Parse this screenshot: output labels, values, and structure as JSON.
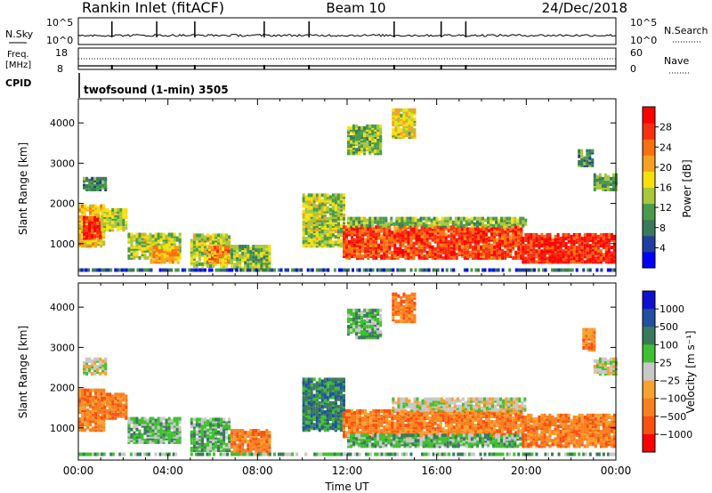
{
  "header": {
    "station": "Rankin Inlet (fitACF)",
    "beam": "Beam 10",
    "date": "24/Dec/2018"
  },
  "noise_panel": {
    "left_label": "N.Sky",
    "right_label": "N.Search",
    "left_ticks": [
      "10^5",
      "10^0"
    ],
    "right_ticks": [
      "10^5",
      "10^0"
    ]
  },
  "freq_panel": {
    "left_label_line1": "Freq.",
    "left_label_line2": "[MHz]",
    "right_label": "Nave",
    "left_ticks": [
      "18",
      "8"
    ],
    "right_ticks": [
      "60",
      "0"
    ]
  },
  "cpid": {
    "label": "CPID",
    "text": "twofsound (1-min) 3505"
  },
  "colors": {
    "power_scale": [
      "#0000ff",
      "#1f3fa0",
      "#3a7a5a",
      "#4a9a4a",
      "#a8c83a",
      "#f8e010",
      "#f8a020",
      "#f87010",
      "#f83010",
      "#ff0000"
    ],
    "velocity_scale": [
      "#1010d0",
      "#2050a0",
      "#3a7a5a",
      "#40c030",
      "#c8c8c8",
      "#f8a030",
      "#f88020",
      "#f85010",
      "#ff0000"
    ]
  },
  "chart_data": [
    {
      "type": "heatmap",
      "title": "",
      "xlabel": "",
      "ylabel": "Slant Range [km]",
      "xlim": [
        0,
        24
      ],
      "ylim": [
        200,
        4600
      ],
      "x_ticks": [
        "00:00",
        "04:00",
        "08:00",
        "12:00",
        "16:00",
        "20:00",
        "00:00"
      ],
      "y_ticks": [
        1000,
        2000,
        3000,
        4000
      ],
      "colorbar_label": "Power [dB]",
      "colorbar_ticks": [
        "4",
        "8",
        "12",
        "16",
        "20",
        "24",
        "28"
      ],
      "colorbar_range": [
        0,
        30
      ],
      "regions": [
        {
          "t0": 0.0,
          "t1": 1.2,
          "r0": 900,
          "r1": 1900,
          "v": 18
        },
        {
          "t0": 0.2,
          "t1": 1.0,
          "r0": 1100,
          "r1": 1600,
          "v": 28
        },
        {
          "t0": 1.0,
          "t1": 2.2,
          "r0": 1300,
          "r1": 1800,
          "v": 14
        },
        {
          "t0": 2.2,
          "t1": 4.5,
          "r0": 600,
          "r1": 1200,
          "v": 14
        },
        {
          "t0": 3.2,
          "t1": 4.5,
          "r0": 500,
          "r1": 900,
          "v": 20
        },
        {
          "t0": 5.0,
          "t1": 6.8,
          "r0": 400,
          "r1": 1200,
          "v": 14
        },
        {
          "t0": 5.8,
          "t1": 6.7,
          "r0": 500,
          "r1": 900,
          "v": 22
        },
        {
          "t0": 6.8,
          "t1": 8.5,
          "r0": 300,
          "r1": 900,
          "v": 12
        },
        {
          "t0": 10.0,
          "t1": 11.8,
          "r0": 900,
          "r1": 2200,
          "v": 14
        },
        {
          "t0": 11.8,
          "t1": 19.8,
          "r0": 600,
          "r1": 1400,
          "v": 26
        },
        {
          "t0": 19.8,
          "t1": 24.0,
          "r0": 500,
          "r1": 1200,
          "v": 28
        },
        {
          "t0": 12.0,
          "t1": 20.0,
          "r0": 1400,
          "r1": 1600,
          "v": 12
        },
        {
          "t0": 12.0,
          "t1": 13.5,
          "r0": 3200,
          "r1": 3900,
          "v": 12
        },
        {
          "t0": 14.0,
          "t1": 15.0,
          "r0": 3600,
          "r1": 4300,
          "v": 16
        },
        {
          "t0": 0.2,
          "t1": 1.2,
          "r0": 2300,
          "r1": 2600,
          "v": 8
        },
        {
          "t0": 22.3,
          "t1": 23.0,
          "r0": 2900,
          "r1": 3300,
          "v": 8
        },
        {
          "t0": 23.0,
          "t1": 24.0,
          "r0": 2300,
          "r1": 2700,
          "v": 10
        }
      ]
    },
    {
      "type": "heatmap",
      "title": "",
      "xlabel": "Time UT",
      "ylabel": "Slant Range [km]",
      "xlim": [
        0,
        24
      ],
      "ylim": [
        200,
        4600
      ],
      "x_ticks": [
        "00:00",
        "04:00",
        "08:00",
        "12:00",
        "16:00",
        "20:00",
        "00:00"
      ],
      "y_ticks": [
        1000,
        2000,
        3000,
        4000
      ],
      "colorbar_label": "Velocity [m s⁻¹]",
      "colorbar_ticks": [
        "1000",
        "500",
        "100",
        "25",
        "−25",
        "−100",
        "−500",
        "−1000"
      ],
      "regions": [
        {
          "t0": 0.0,
          "t1": 1.2,
          "r0": 900,
          "r1": 1900,
          "c": 6
        },
        {
          "t0": 1.0,
          "t1": 2.2,
          "r0": 1200,
          "r1": 1800,
          "c": 6
        },
        {
          "t0": 2.2,
          "t1": 4.5,
          "r0": 600,
          "r1": 1200,
          "c": 3
        },
        {
          "t0": 5.0,
          "t1": 6.8,
          "r0": 400,
          "r1": 1200,
          "c": 3
        },
        {
          "t0": 6.8,
          "t1": 8.5,
          "r0": 300,
          "r1": 900,
          "c": 6
        },
        {
          "t0": 10.0,
          "t1": 11.8,
          "r0": 900,
          "r1": 2200,
          "c": 2
        },
        {
          "t0": 11.8,
          "t1": 19.8,
          "r0": 700,
          "r1": 1400,
          "c": 6
        },
        {
          "t0": 12.0,
          "t1": 19.8,
          "r0": 500,
          "r1": 800,
          "c": 3
        },
        {
          "t0": 19.8,
          "t1": 24.0,
          "r0": 500,
          "r1": 1300,
          "c": 6
        },
        {
          "t0": 14.0,
          "t1": 20.0,
          "r0": 1400,
          "r1": 1700,
          "c": 4
        },
        {
          "t0": 12.0,
          "t1": 13.5,
          "r0": 3200,
          "r1": 3900,
          "c": 3
        },
        {
          "t0": 14.0,
          "t1": 15.0,
          "r0": 3600,
          "r1": 4300,
          "c": 6
        },
        {
          "t0": 0.2,
          "t1": 1.2,
          "r0": 2300,
          "r1": 2700,
          "c": 4
        },
        {
          "t0": 22.5,
          "t1": 23.0,
          "r0": 2900,
          "r1": 3400,
          "c": 6
        },
        {
          "t0": 23.0,
          "t1": 24.0,
          "r0": 2300,
          "r1": 2700,
          "c": 4
        }
      ]
    }
  ]
}
